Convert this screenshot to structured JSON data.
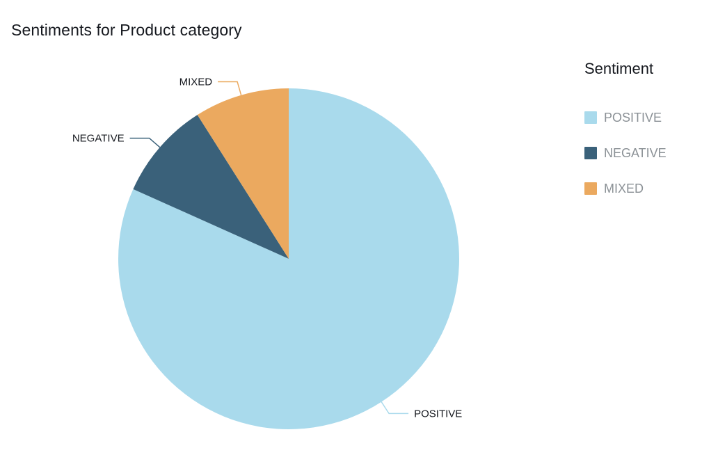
{
  "page": {
    "title": "Sentiments for Product category"
  },
  "legend": {
    "title": "Sentiment",
    "items": [
      {
        "label": "POSITIVE",
        "color": "#a9daec"
      },
      {
        "label": "NEGATIVE",
        "color": "#3a617a"
      },
      {
        "label": "MIXED",
        "color": "#eba95f"
      }
    ]
  },
  "chart_data": {
    "type": "pie",
    "title": "Sentiments for Product category",
    "legend_title": "Sentiment",
    "legend_position": "right",
    "labels_style": "outside-with-leader-lines",
    "start_angle_deg": 0,
    "direction": "clockwise",
    "slices": [
      {
        "label": "POSITIVE",
        "percent": 81.7,
        "color": "#a9daec"
      },
      {
        "label": "NEGATIVE",
        "percent": 9.3,
        "color": "#3a617a"
      },
      {
        "label": "MIXED",
        "percent": 9.0,
        "color": "#eba95f"
      }
    ]
  },
  "colors": {
    "slice_label_text": "#16191f",
    "legend_text": "#8b9196",
    "title_text": "#16191f",
    "background": "#ffffff"
  }
}
